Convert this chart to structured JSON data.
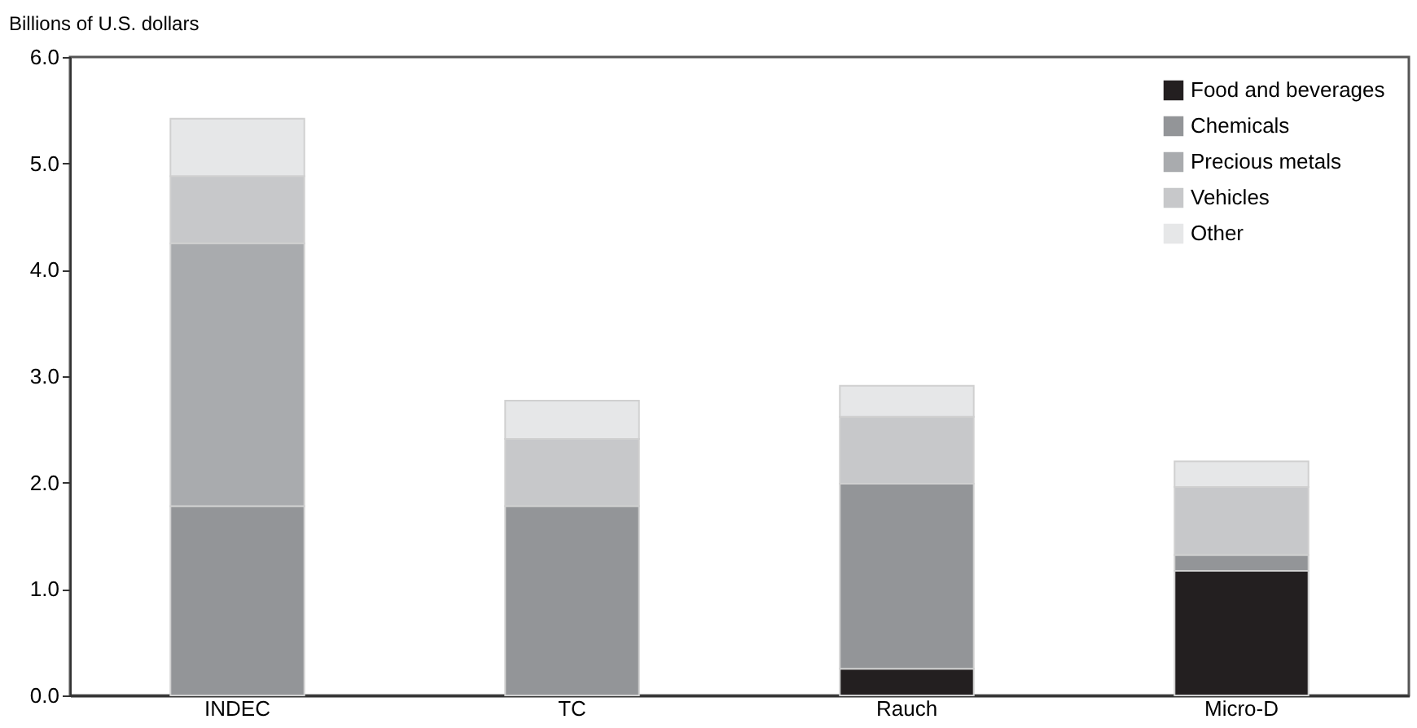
{
  "chart_data": {
    "type": "bar",
    "stacked": true,
    "ylabel": "Billions of U.S. dollars",
    "categories": [
      "INDEC",
      "TC",
      "Rauch",
      "Micro-D"
    ],
    "series": [
      {
        "name": "Food and beverages",
        "color": "#231f20",
        "values": [
          null,
          null,
          0.25,
          1.17
        ]
      },
      {
        "name": "Chemicals",
        "color": "#939598",
        "values": [
          1.78,
          1.78,
          1.74,
          0.15
        ]
      },
      {
        "name": "Precious metals",
        "color": "#a9abae",
        "values": [
          2.47,
          null,
          null,
          null
        ]
      },
      {
        "name": "Vehicles",
        "color": "#c7c8ca",
        "values": [
          0.63,
          0.63,
          0.63,
          0.64
        ]
      },
      {
        "name": "Other",
        "color": "#e6e7e8",
        "values": [
          0.54,
          0.36,
          0.29,
          0.24
        ]
      }
    ],
    "ylim": [
      0,
      6
    ],
    "yticks": [
      {
        "value": 0,
        "label": "0.0"
      },
      {
        "value": 1,
        "label": "1.0"
      },
      {
        "value": 2,
        "label": "2.0"
      },
      {
        "value": 3,
        "label": "3.0"
      },
      {
        "value": 4,
        "label": "4.0"
      },
      {
        "value": 5,
        "label": "5.0"
      },
      {
        "value": 6,
        "label": "6.0"
      }
    ],
    "grid": false,
    "legend": "top right"
  }
}
